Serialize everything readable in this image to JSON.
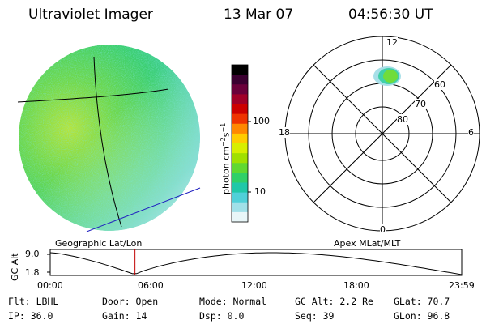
{
  "header": {
    "instrument": "Ultraviolet Imager",
    "date": "13 Mar 07",
    "time": "04:56:30 UT"
  },
  "panels": {
    "left_caption": "Geographic Lat/Lon",
    "right_caption": "Apex MLat/MLT"
  },
  "colorbar": {
    "unit_main": "photon cm",
    "unit_exp1": "−2",
    "unit_mid": "s",
    "unit_exp2": "−1",
    "ticks": [
      "100",
      "10"
    ],
    "colors": [
      "#000000",
      "#3a0030",
      "#6a003a",
      "#a00028",
      "#cc0000",
      "#ee3300",
      "#ff8800",
      "#ffcc00",
      "#d8ee00",
      "#a0e000",
      "#60d830",
      "#30d068",
      "#20c8a8",
      "#50d0d8",
      "#a0e0e8",
      "#e8f6f8"
    ]
  },
  "polar": {
    "mlt_labels": {
      "top": "12",
      "right": "6",
      "bottom": "0",
      "left": "18"
    },
    "lat_labels": [
      "60",
      "70",
      "80"
    ]
  },
  "timeline": {
    "ylabel": "GC Alt",
    "yticks": [
      "9.0",
      "1.8"
    ],
    "xticks": [
      "00:00",
      "06:00",
      "12:00",
      "18:00",
      "23:59"
    ],
    "current_fraction": 0.206
  },
  "status": {
    "flt": "Flt: LBHL",
    "ip": "IP: 36.0",
    "door": "Door: Open",
    "gain": "Gain: 14",
    "mode": "Mode: Normal",
    "dsp": "Dsp:     0.0",
    "gcalt": "GC Alt: 2.2 Re",
    "seq": "Seq: 39",
    "glat": "GLat:  70.7",
    "glon": "GLon:  96.8"
  },
  "colors": {
    "line_blue": "#2020c0",
    "marker_red": "#c00000"
  }
}
